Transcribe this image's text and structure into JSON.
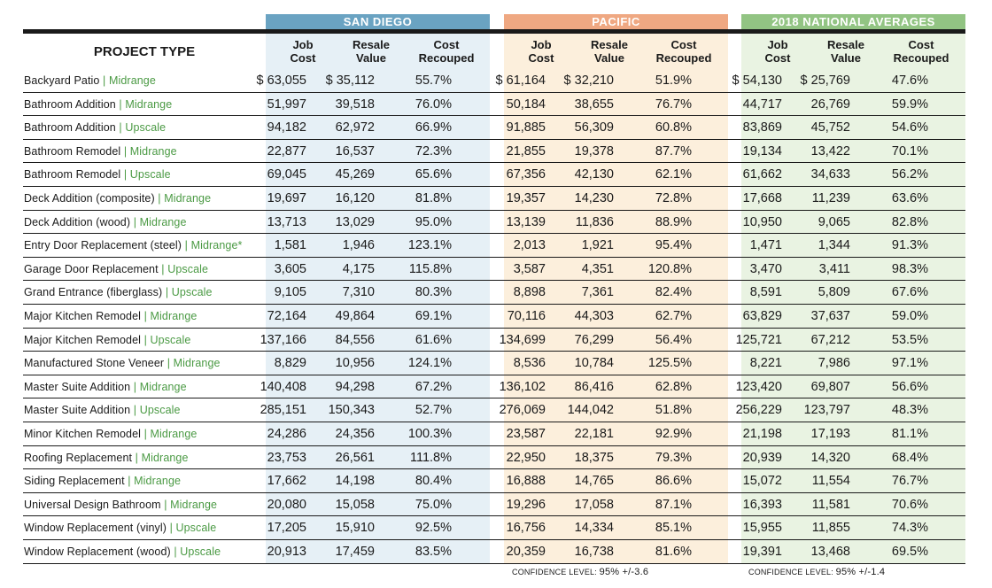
{
  "regions": [
    {
      "name": "SAN DIEGO"
    },
    {
      "name": "PACIFIC"
    },
    {
      "name": "2018 NATIONAL AVERAGES"
    }
  ],
  "header": {
    "project_type": "PROJECT TYPE",
    "job_cost": "Job Cost",
    "resale_value": "Resale Value",
    "cost_recouped": "Cost Recouped"
  },
  "rows": [
    {
      "project": "Backyard Patio",
      "tier": "Midrange",
      "values": [
        "$ 63,055",
        "$ 35,112",
        "55.7%",
        "$ 61,164",
        "$ 32,210",
        "51.9%",
        "$ 54,130",
        "$ 25,769",
        "47.6%"
      ]
    },
    {
      "project": "Bathroom Addition",
      "tier": "Midrange",
      "values": [
        "51,997",
        "39,518",
        "76.0%",
        "50,184",
        "38,655",
        "76.7%",
        "44,717",
        "26,769",
        "59.9%"
      ]
    },
    {
      "project": "Bathroom Addition",
      "tier": "Upscale",
      "values": [
        "94,182",
        "62,972",
        "66.9%",
        "91,885",
        "56,309",
        "60.8%",
        "83,869",
        "45,752",
        "54.6%"
      ]
    },
    {
      "project": "Bathroom Remodel",
      "tier": "Midrange",
      "values": [
        "22,877",
        "16,537",
        "72.3%",
        "21,855",
        "19,378",
        "87.7%",
        "19,134",
        "13,422",
        "70.1%"
      ]
    },
    {
      "project": "Bathroom Remodel",
      "tier": "Upscale",
      "values": [
        "69,045",
        "45,269",
        "65.6%",
        "67,356",
        "42,130",
        "62.1%",
        "61,662",
        "34,633",
        "56.2%"
      ]
    },
    {
      "project": "Deck Addition (composite)",
      "tier": "Midrange",
      "values": [
        "19,697",
        "16,120",
        "81.8%",
        "19,357",
        "14,230",
        "72.8%",
        "17,668",
        "11,239",
        "63.6%"
      ]
    },
    {
      "project": "Deck Addition (wood)",
      "tier": "Midrange",
      "values": [
        "13,713",
        "13,029",
        "95.0%",
        "13,139",
        "11,836",
        "88.9%",
        "10,950",
        "9,065",
        "82.8%"
      ]
    },
    {
      "project": "Entry Door Replacement (steel)",
      "tier": "Midrange*",
      "values": [
        "1,581",
        "1,946",
        "123.1%",
        "2,013",
        "1,921",
        "95.4%",
        "1,471",
        "1,344",
        "91.3%"
      ]
    },
    {
      "project": "Garage Door Replacement",
      "tier": "Upscale",
      "values": [
        "3,605",
        "4,175",
        "115.8%",
        "3,587",
        "4,351",
        "120.8%",
        "3,470",
        "3,411",
        "98.3%"
      ]
    },
    {
      "project": "Grand Entrance (fiberglass)",
      "tier": "Upscale",
      "values": [
        "9,105",
        "7,310",
        "80.3%",
        "8,898",
        "7,361",
        "82.4%",
        "8,591",
        "5,809",
        "67.6%"
      ]
    },
    {
      "project": "Major Kitchen Remodel",
      "tier": "Midrange",
      "values": [
        "72,164",
        "49,864",
        "69.1%",
        "70,116",
        "44,303",
        "62.7%",
        "63,829",
        "37,637",
        "59.0%"
      ]
    },
    {
      "project": "Major Kitchen Remodel",
      "tier": "Upscale",
      "values": [
        "137,166",
        "84,556",
        "61.6%",
        "134,699",
        "76,299",
        "56.4%",
        "125,721",
        "67,212",
        "53.5%"
      ]
    },
    {
      "project": "Manufactured Stone Veneer",
      "tier": "Midrange",
      "values": [
        "8,829",
        "10,956",
        "124.1%",
        "8,536",
        "10,784",
        "125.5%",
        "8,221",
        "7,986",
        "97.1%"
      ]
    },
    {
      "project": "Master Suite Addition",
      "tier": "Midrange",
      "values": [
        "140,408",
        "94,298",
        "67.2%",
        "136,102",
        "86,416",
        "62.8%",
        "123,420",
        "69,807",
        "56.6%"
      ]
    },
    {
      "project": "Master Suite Addition",
      "tier": "Upscale",
      "values": [
        "285,151",
        "150,343",
        "52.7%",
        "276,069",
        "144,042",
        "51.8%",
        "256,229",
        "123,797",
        "48.3%"
      ]
    },
    {
      "project": "Minor Kitchen Remodel",
      "tier": "Midrange",
      "values": [
        "24,286",
        "24,356",
        "100.3%",
        "23,587",
        "22,181",
        "92.9%",
        "21,198",
        "17,193",
        "81.1%"
      ]
    },
    {
      "project": "Roofing Replacement",
      "tier": "Midrange",
      "values": [
        "23,753",
        "26,561",
        "111.8%",
        "22,950",
        "18,375",
        "79.3%",
        "20,939",
        "14,320",
        "68.4%"
      ]
    },
    {
      "project": "Siding Replacement",
      "tier": "Midrange",
      "values": [
        "17,662",
        "14,198",
        "80.4%",
        "16,888",
        "14,765",
        "86.6%",
        "15,072",
        "11,554",
        "76.7%"
      ]
    },
    {
      "project": "Universal Design Bathroom",
      "tier": "Midrange",
      "values": [
        "20,080",
        "15,058",
        "75.0%",
        "19,296",
        "17,058",
        "87.1%",
        "16,393",
        "11,581",
        "70.6%"
      ]
    },
    {
      "project": "Window Replacement (vinyl)",
      "tier": "Upscale",
      "values": [
        "17,205",
        "15,910",
        "92.5%",
        "16,756",
        "14,334",
        "85.1%",
        "15,955",
        "11,855",
        "74.3%"
      ]
    },
    {
      "project": "Window Replacement (wood)",
      "tier": "Upscale",
      "values": [
        "20,913",
        "17,459",
        "83.5%",
        "20,359",
        "16,738",
        "81.6%",
        "19,391",
        "13,468",
        "69.5%"
      ]
    }
  ],
  "footer": {
    "pacific_label": "CONFIDENCE LEVEL:",
    "pacific_value": "95% +/-3.6",
    "national_label": "CONFIDENCE LEVEL:",
    "national_value": "95% +/-1.4"
  }
}
